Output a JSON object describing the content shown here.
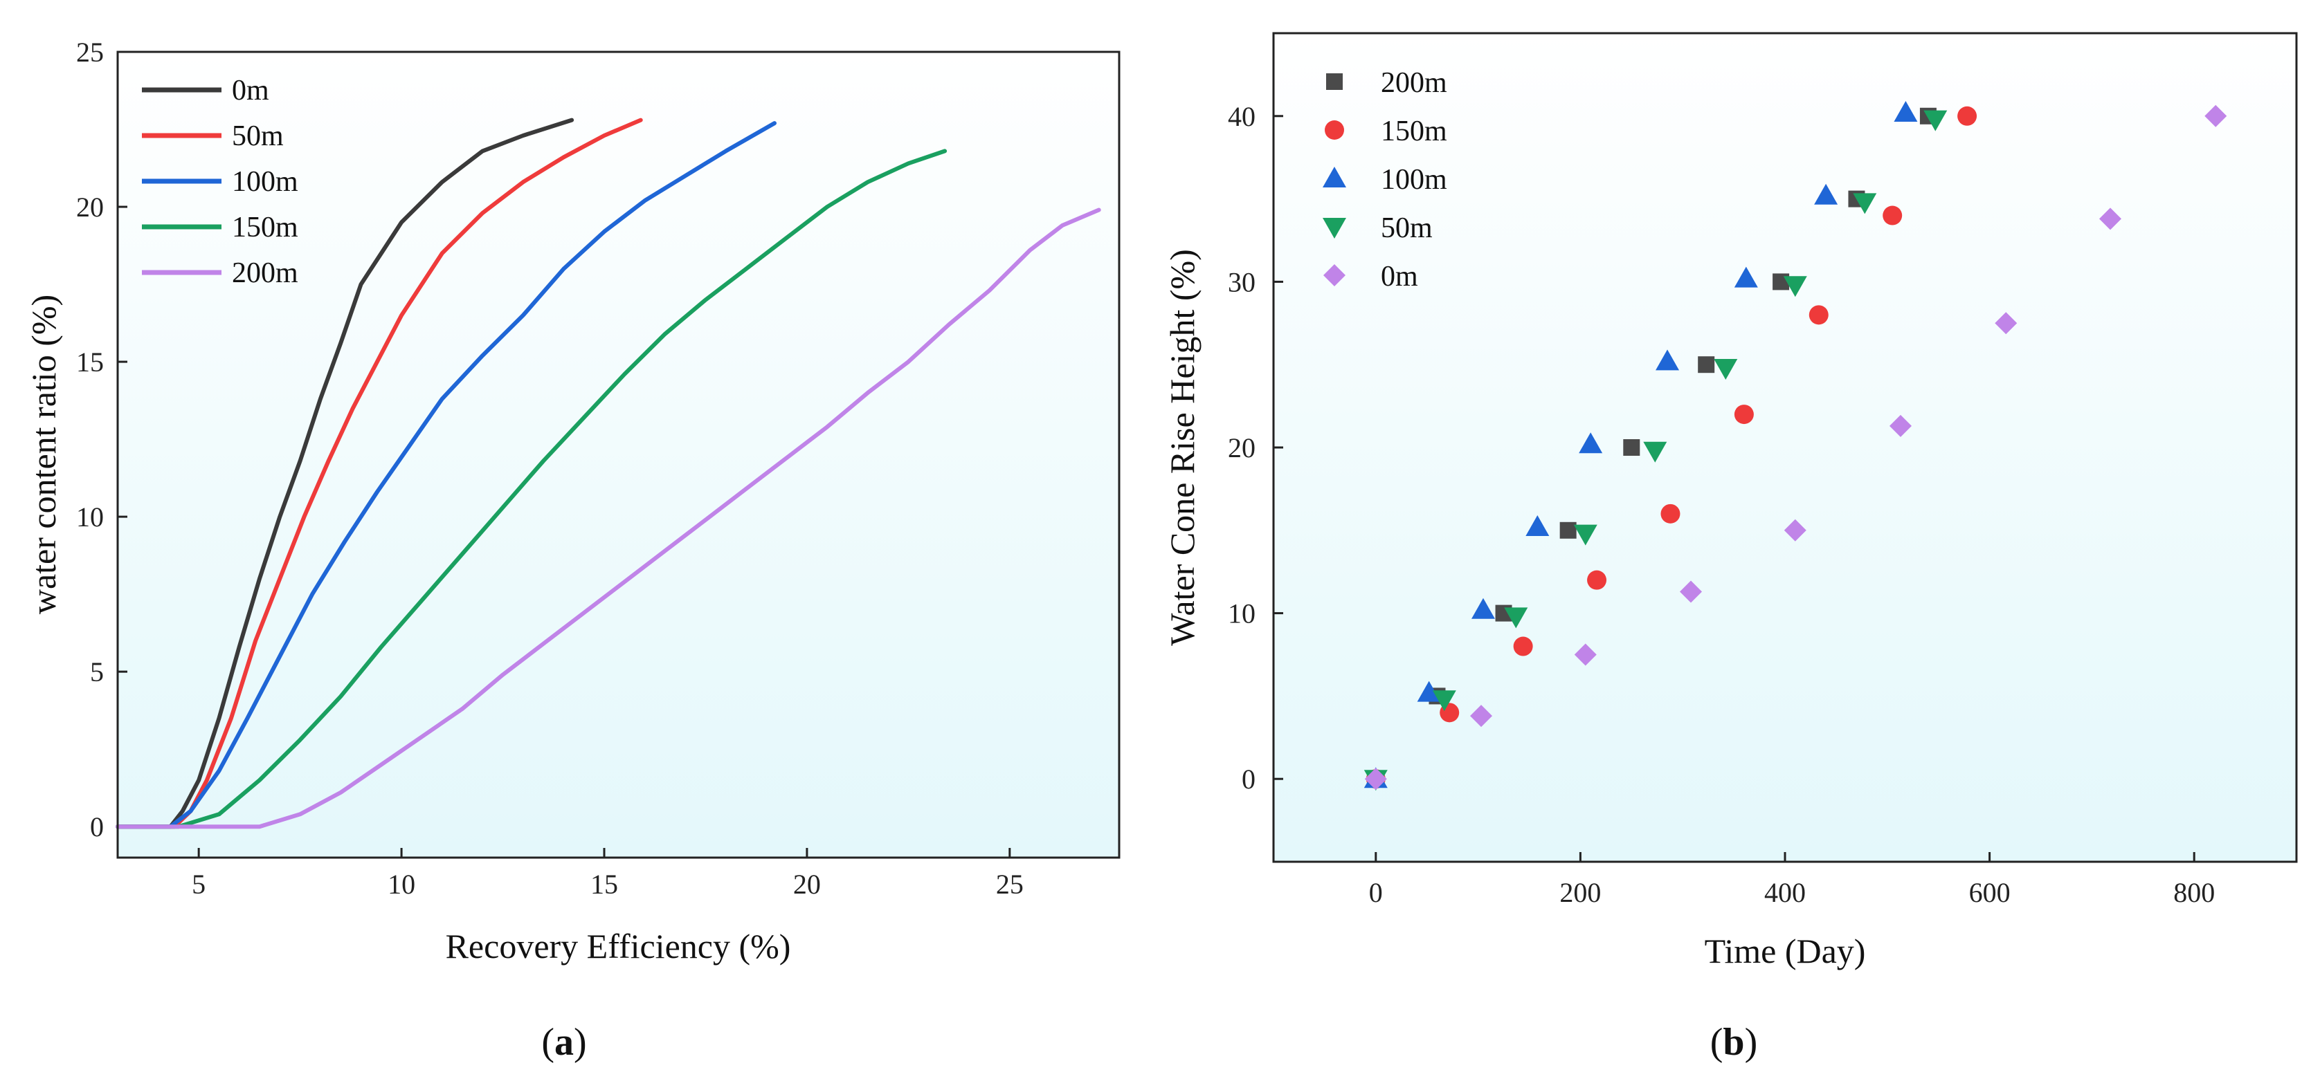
{
  "chart_data": [
    {
      "type": "line",
      "panel": "a",
      "caption_open": "(",
      "caption_letter": "a",
      "caption_close": ")",
      "xlabel": "Recovery Efficiency (%)",
      "ylabel": "water content ratio (%)",
      "xlim": [
        3,
        27.7
      ],
      "ylim": [
        -1,
        25
      ],
      "xticks": [
        5,
        10,
        15,
        20,
        25
      ],
      "yticks": [
        0,
        5,
        10,
        15,
        20,
        25
      ],
      "legend_position": "top-left",
      "series": [
        {
          "name": "0m",
          "color": "#3a3a3a",
          "x": [
            3.0,
            4.3,
            4.6,
            5.0,
            5.5,
            6.0,
            6.5,
            7.0,
            7.5,
            8.0,
            8.5,
            9.0,
            9.5,
            10.0,
            11.0,
            12.0,
            13.0,
            14.2
          ],
          "y": [
            0,
            0,
            0.5,
            1.5,
            3.5,
            5.8,
            8.0,
            10.0,
            11.8,
            13.8,
            15.6,
            17.5,
            18.5,
            19.5,
            20.8,
            21.8,
            22.3,
            22.8
          ]
        },
        {
          "name": "50m",
          "color": "#ef3b3b",
          "x": [
            3.0,
            4.4,
            4.8,
            5.2,
            5.8,
            6.4,
            7.0,
            7.6,
            8.2,
            8.8,
            9.4,
            10.0,
            11.0,
            12.0,
            13.0,
            14.0,
            15.0,
            15.9
          ],
          "y": [
            0,
            0,
            0.5,
            1.5,
            3.5,
            6.0,
            8.0,
            10.0,
            11.8,
            13.5,
            15.0,
            16.5,
            18.5,
            19.8,
            20.8,
            21.6,
            22.3,
            22.8
          ]
        },
        {
          "name": "100m",
          "color": "#1f66d6",
          "x": [
            3.0,
            4.3,
            4.8,
            5.5,
            6.2,
            7.0,
            7.8,
            8.6,
            9.4,
            10.2,
            11.0,
            12.0,
            13.0,
            14.0,
            15.0,
            16.0,
            17.0,
            18.0,
            19.2
          ],
          "y": [
            0,
            0,
            0.5,
            1.8,
            3.5,
            5.5,
            7.5,
            9.2,
            10.8,
            12.3,
            13.8,
            15.2,
            16.5,
            18.0,
            19.2,
            20.2,
            21.0,
            21.8,
            22.7
          ]
        },
        {
          "name": "150m",
          "color": "#1aa060",
          "x": [
            3.0,
            4.5,
            5.5,
            6.5,
            7.5,
            8.5,
            9.5,
            10.5,
            11.5,
            12.5,
            13.5,
            14.5,
            15.5,
            16.5,
            17.5,
            18.5,
            19.5,
            20.5,
            21.5,
            22.5,
            23.4
          ],
          "y": [
            0,
            0,
            0.4,
            1.5,
            2.8,
            4.2,
            5.8,
            7.3,
            8.8,
            10.3,
            11.8,
            13.2,
            14.6,
            15.9,
            17.0,
            18.0,
            19.0,
            20.0,
            20.8,
            21.4,
            21.8
          ]
        },
        {
          "name": "200m",
          "color": "#c084e8",
          "x": [
            3.0,
            6.5,
            7.5,
            8.5,
            9.5,
            10.5,
            11.5,
            12.5,
            13.5,
            14.5,
            15.5,
            16.5,
            17.5,
            18.5,
            19.5,
            20.5,
            21.5,
            22.5,
            23.5,
            24.5,
            25.5,
            26.3,
            27.2
          ],
          "y": [
            0,
            0,
            0.4,
            1.1,
            2.0,
            2.9,
            3.8,
            4.9,
            5.9,
            6.9,
            7.9,
            8.9,
            9.9,
            10.9,
            11.9,
            12.9,
            14.0,
            15.0,
            16.2,
            17.3,
            18.6,
            19.4,
            19.9
          ]
        }
      ]
    },
    {
      "type": "scatter",
      "panel": "b",
      "caption_open": "(",
      "caption_letter": "b",
      "caption_close": ")",
      "xlabel": "Time (Day)",
      "ylabel": "Water Cone Rise Height (%)",
      "xlim": [
        -100,
        900
      ],
      "ylim": [
        -5,
        45
      ],
      "xticks": [
        0,
        200,
        400,
        600,
        800
      ],
      "yticks": [
        0,
        10,
        20,
        30,
        40
      ],
      "legend_position": "top-left",
      "series": [
        {
          "name": "200m",
          "marker": "square",
          "color": "#4a4a4a",
          "x": [
            0,
            60,
            125,
            188,
            250,
            323,
            396,
            470,
            540
          ],
          "y": [
            0,
            5,
            10,
            15,
            20,
            25,
            30,
            35,
            40
          ]
        },
        {
          "name": "150m",
          "marker": "circle",
          "color": "#ee3a3a",
          "x": [
            0,
            72,
            144,
            216,
            288,
            360,
            433,
            505,
            578
          ],
          "y": [
            0,
            4,
            8,
            12,
            16,
            22,
            28,
            34,
            40
          ]
        },
        {
          "name": "100m",
          "marker": "triangle-up",
          "color": "#1f66d6",
          "x": [
            0,
            52,
            105,
            158,
            210,
            285,
            362,
            440,
            518
          ],
          "y": [
            0,
            5.2,
            10.2,
            15.2,
            20.2,
            25.2,
            30.2,
            35.2,
            40.2
          ]
        },
        {
          "name": "50m",
          "marker": "triangle-down",
          "color": "#1aa060",
          "x": [
            0,
            67,
            137,
            205,
            273,
            342,
            410,
            478,
            547
          ],
          "y": [
            0,
            4.8,
            9.8,
            14.8,
            19.8,
            24.8,
            29.8,
            34.8,
            39.8
          ]
        },
        {
          "name": "0m",
          "marker": "diamond",
          "color": "#c084e8",
          "x": [
            0,
            103,
            205,
            308,
            410,
            513,
            616,
            718,
            821
          ],
          "y": [
            0,
            3.8,
            7.5,
            11.3,
            15.0,
            21.3,
            27.5,
            33.8,
            40.0
          ]
        }
      ]
    }
  ]
}
